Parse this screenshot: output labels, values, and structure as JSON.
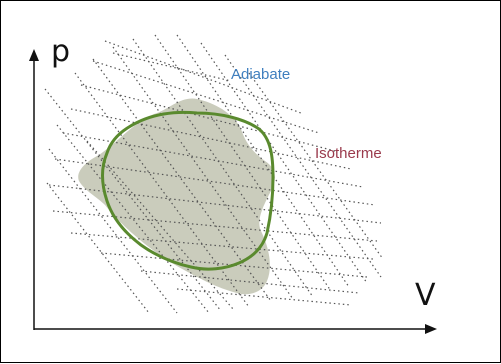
{
  "diagram": {
    "axis_y_label": "p",
    "axis_x_label": "V",
    "adiabat_label": "Adiabate",
    "isotherm_label": "Isotherme",
    "colors": {
      "adiabat_label": "#3f7fbf",
      "isotherm_label": "#9a3a4c",
      "cycle_outline": "#5a8a2e",
      "shaded_region": "#c7c9b8",
      "dotted_lines": "#555555",
      "axes": "#111111"
    }
  }
}
